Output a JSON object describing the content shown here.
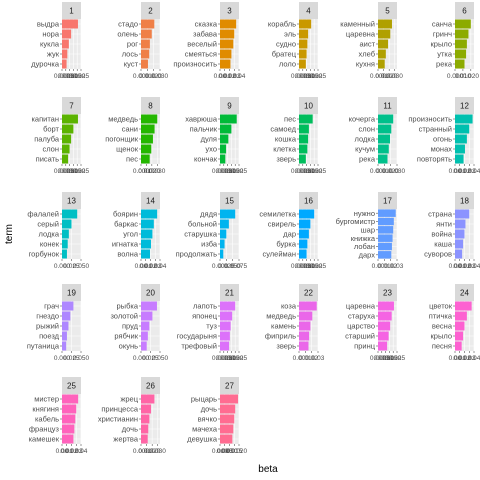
{
  "chart_data": {
    "type": "bar",
    "orientation": "horizontal",
    "xlabel": "beta",
    "ylabel": "term",
    "grid": true,
    "legend": "none",
    "facets": [
      {
        "label": "1",
        "color": "#F8766D",
        "terms": [
          "выдра",
          "нора",
          "кукла",
          "жук",
          "дурочка"
        ],
        "values": [
          0.021,
          0.012,
          0.009,
          0.007,
          0.006
        ],
        "xmax": 0.025,
        "ticks": [
          "0.000",
          "0.005",
          "0.010",
          "0.015",
          "0.020",
          "0.025"
        ]
      },
      {
        "label": "2",
        "color": "#EF7F47",
        "terms": [
          "стадо",
          "олень",
          "рог",
          "лось",
          "куст"
        ],
        "values": [
          0.021,
          0.017,
          0.014,
          0.013,
          0.011
        ],
        "xmax": 0.03,
        "ticks": [
          "0.000",
          "0.010",
          "0.020",
          "0.030"
        ]
      },
      {
        "label": "3",
        "color": "#E08B00",
        "terms": [
          "сказка",
          "забава",
          "веселый",
          "смеяться",
          "произносить"
        ],
        "values": [
          0.034,
          0.03,
          0.028,
          0.024,
          0.022
        ],
        "xmax": 0.04,
        "ticks": [
          "0.00",
          "0.01",
          "0.02",
          "0.03",
          "0.04"
        ]
      },
      {
        "label": "4",
        "color": "#C99800",
        "terms": [
          "корабль",
          "эль",
          "судно",
          "братец",
          "лоло"
        ],
        "values": [
          0.016,
          0.012,
          0.011,
          0.01,
          0.009
        ],
        "xmax": 0.025,
        "ticks": [
          "0.000",
          "0.005",
          "0.010",
          "0.015",
          "0.020",
          "0.025"
        ]
      },
      {
        "label": "5",
        "color": "#B0A000",
        "terms": [
          "каменный",
          "царевна",
          "аист",
          "хлеб",
          "кухня"
        ],
        "values": [
          0.025,
          0.022,
          0.018,
          0.014,
          0.012
        ],
        "xmax": 0.034,
        "ticks": [
          "0.000",
          "0.010",
          "0.020",
          "0.030"
        ]
      },
      {
        "label": "6",
        "color": "#8CAB00",
        "terms": [
          "санча",
          "гринч",
          "крыло",
          "утка",
          "река"
        ],
        "values": [
          0.02,
          0.017,
          0.015,
          0.014,
          0.012
        ],
        "xmax": 0.024,
        "ticks": [
          "0.000",
          "0.010",
          "0.020"
        ]
      },
      {
        "label": "7",
        "color": "#5BB300",
        "terms": [
          "капитан",
          "борт",
          "палуба",
          "слон",
          "писать"
        ],
        "values": [
          0.021,
          0.015,
          0.012,
          0.01,
          0.008
        ],
        "xmax": 0.025,
        "ticks": [
          "0.000",
          "0.005",
          "0.010",
          "0.015",
          "0.020",
          "0.025"
        ]
      },
      {
        "label": "8",
        "color": "#24B700",
        "terms": [
          "медведь",
          "сани",
          "погонщик",
          "щенок",
          "пес"
        ],
        "values": [
          0.03,
          0.025,
          0.022,
          0.019,
          0.016
        ],
        "xmax": 0.035,
        "ticks": [
          "0.000",
          "0.010",
          "0.020",
          "0.030"
        ]
      },
      {
        "label": "9",
        "color": "#00BA38",
        "terms": [
          "хаврюша",
          "пальчик",
          "дуля",
          "ухо",
          "кончак"
        ],
        "values": [
          0.022,
          0.015,
          0.011,
          0.008,
          0.007
        ],
        "xmax": 0.025,
        "ticks": [
          "0.000",
          "0.005",
          "0.010",
          "0.015",
          "0.020",
          "0.025"
        ]
      },
      {
        "label": "10",
        "color": "#00BD5C",
        "terms": [
          "пес",
          "самоед",
          "кошка",
          "клетка",
          "зверь"
        ],
        "values": [
          0.018,
          0.013,
          0.012,
          0.011,
          0.009
        ],
        "xmax": 0.025,
        "ticks": [
          "0.000",
          "0.005",
          "0.010",
          "0.015",
          "0.020",
          "0.025"
        ]
      },
      {
        "label": "11",
        "color": "#00C08B",
        "terms": [
          "кочерга",
          "слон",
          "лодка",
          "кучум",
          "река"
        ],
        "values": [
          0.024,
          0.021,
          0.019,
          0.017,
          0.015
        ],
        "xmax": 0.03,
        "ticks": [
          "0.000",
          "0.010",
          "0.020",
          "0.030"
        ]
      },
      {
        "label": "12",
        "color": "#00C0AF",
        "terms": [
          "произносить",
          "странный",
          "огонь",
          "монах",
          "повторять"
        ],
        "values": [
          0.037,
          0.03,
          0.025,
          0.021,
          0.018
        ],
        "xmax": 0.04,
        "ticks": [
          "0.00",
          "0.01",
          "0.02",
          "0.03",
          "0.04"
        ]
      },
      {
        "label": "13",
        "color": "#00BFC4",
        "terms": [
          "фалалей",
          "серый",
          "лодка",
          "конек",
          "горбунок"
        ],
        "values": [
          0.04,
          0.025,
          0.018,
          0.015,
          0.013
        ],
        "xmax": 0.05,
        "ticks": [
          "0.000",
          "0.025",
          "0.050"
        ]
      },
      {
        "label": "14",
        "color": "#00BBDA",
        "terms": [
          "боярин",
          "баркас",
          "угол",
          "игнатка",
          "волна"
        ],
        "values": [
          0.034,
          0.027,
          0.024,
          0.021,
          0.019
        ],
        "xmax": 0.04,
        "ticks": [
          "0.00",
          "0.01",
          "0.02",
          "0.03",
          "0.04"
        ]
      },
      {
        "label": "15",
        "color": "#00B4EF",
        "terms": [
          "дядя",
          "больной",
          "старушка",
          "изба",
          "продолжать"
        ],
        "values": [
          0.06,
          0.035,
          0.025,
          0.018,
          0.013
        ],
        "xmax": 0.075,
        "ticks": [
          "0.000",
          "0.025",
          "0.050",
          "0.075"
        ]
      },
      {
        "label": "16",
        "color": "#00A9FF",
        "terms": [
          "семилетка",
          "свирель",
          "дар",
          "бурка",
          "сулейман"
        ],
        "values": [
          0.02,
          0.015,
          0.013,
          0.011,
          0.01
        ],
        "xmax": 0.025,
        "ticks": [
          "0.000",
          "0.005",
          "0.010",
          "0.015",
          "0.020",
          "0.025"
        ]
      },
      {
        "label": "17",
        "color": "#619CFF",
        "terms": [
          "нужно",
          "бургомистр",
          "шар",
          "книжка",
          "лобан",
          "дарх"
        ],
        "values": [
          0.028,
          0.025,
          0.024,
          0.023,
          0.022,
          0.021
        ],
        "xmax": 0.03,
        "ticks": [
          "0.00",
          "0.01",
          "0.02",
          "0.03"
        ]
      },
      {
        "label": "18",
        "color": "#8B93FF",
        "terms": [
          "страна",
          "янти",
          "война",
          "каша",
          "суворов"
        ],
        "values": [
          0.03,
          0.022,
          0.02,
          0.017,
          0.015
        ],
        "xmax": 0.04,
        "ticks": [
          "0.00",
          "0.01",
          "0.02",
          "0.03",
          "0.04"
        ]
      },
      {
        "label": "19",
        "color": "#AE87FF",
        "terms": [
          "грач",
          "гнездо",
          "рыжий",
          "поезд",
          "путаница"
        ],
        "values": [
          0.03,
          0.022,
          0.017,
          0.013,
          0.011
        ],
        "xmax": 0.05,
        "ticks": [
          "0.000",
          "0.025",
          "0.050"
        ]
      },
      {
        "label": "20",
        "color": "#C77CFF",
        "terms": [
          "рыбка",
          "золотой",
          "пруд",
          "рябчик",
          "окунь"
        ],
        "values": [
          0.042,
          0.03,
          0.022,
          0.018,
          0.015
        ],
        "xmax": 0.05,
        "ticks": [
          "0.000",
          "0.025",
          "0.050"
        ]
      },
      {
        "label": "21",
        "color": "#DC71FA",
        "terms": [
          "лапоть",
          "японец",
          "туз",
          "государыня",
          "трефовый"
        ],
        "values": [
          0.02,
          0.016,
          0.014,
          0.013,
          0.012
        ],
        "xmax": 0.025,
        "ticks": [
          "0.000",
          "0.005",
          "0.010",
          "0.015",
          "0.020",
          "0.025"
        ]
      },
      {
        "label": "22",
        "color": "#EA67E9",
        "terms": [
          "коза",
          "медведь",
          "камень",
          "фиприль",
          "зверь"
        ],
        "values": [
          0.028,
          0.021,
          0.018,
          0.016,
          0.015
        ],
        "xmax": 0.03,
        "ticks": [
          "0.00",
          "0.01",
          "0.02",
          "0.03"
        ]
      },
      {
        "label": "23",
        "color": "#F564E3",
        "terms": [
          "царевна",
          "старуха",
          "царство",
          "старший",
          "принц"
        ],
        "values": [
          0.021,
          0.018,
          0.016,
          0.014,
          0.012
        ],
        "xmax": 0.025,
        "ticks": [
          "0.000",
          "0.005",
          "0.010",
          "0.015",
          "0.020",
          "0.025"
        ]
      },
      {
        "label": "24",
        "color": "#FD61D1",
        "terms": [
          "цветок",
          "птичка",
          "весна",
          "крыло",
          "песня"
        ],
        "values": [
          0.035,
          0.025,
          0.02,
          0.017,
          0.014
        ],
        "xmax": 0.04,
        "ticks": [
          "0.00",
          "0.01",
          "0.02",
          "0.03",
          "0.04"
        ]
      },
      {
        "label": "25",
        "color": "#FF62BC",
        "terms": [
          "мистер",
          "княгиня",
          "кабель",
          "француз",
          "камешек"
        ],
        "values": [
          0.034,
          0.03,
          0.028,
          0.026,
          0.024
        ],
        "xmax": 0.04,
        "ticks": [
          "0.00",
          "0.01",
          "0.02",
          "0.03",
          "0.04"
        ]
      },
      {
        "label": "26",
        "color": "#FF65A6",
        "terms": [
          "жрец",
          "принцесса",
          "христианин",
          "дочь",
          "жертва"
        ],
        "values": [
          0.024,
          0.018,
          0.015,
          0.013,
          0.012
        ],
        "xmax": 0.034,
        "ticks": [
          "0.000",
          "0.010",
          "0.020",
          "0.030"
        ]
      },
      {
        "label": "27",
        "color": "#FF6C91",
        "terms": [
          "рыцарь",
          "дочь",
          "вячко",
          "мачеха",
          "девушка"
        ],
        "values": [
          0.019,
          0.016,
          0.015,
          0.014,
          0.013
        ],
        "xmax": 0.02,
        "ticks": [
          "0.000",
          "0.005",
          "0.010",
          "0.015",
          "0.020"
        ]
      }
    ]
  }
}
